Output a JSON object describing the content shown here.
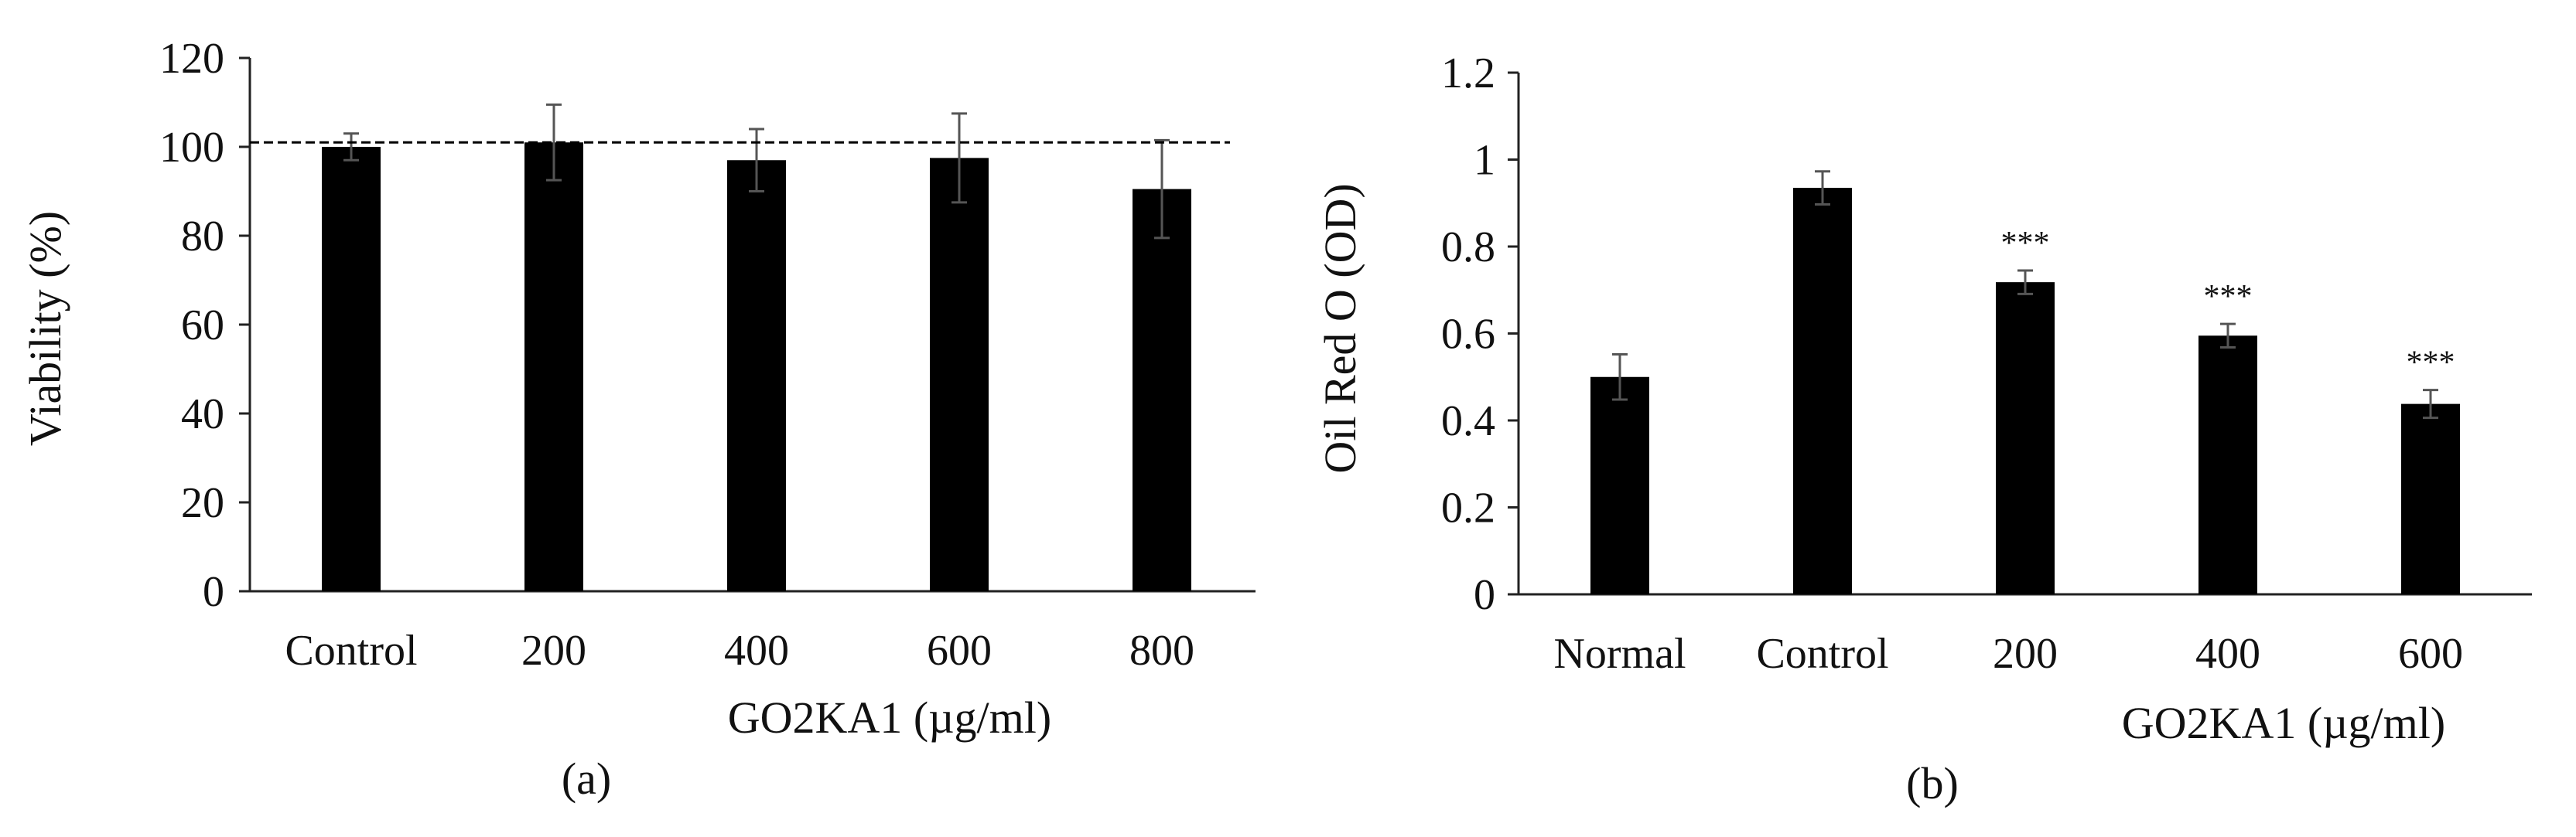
{
  "chart_data": [
    {
      "type": "bar",
      "panel_label": "(a)",
      "categories": [
        "Control",
        "200",
        "400",
        "600",
        "800"
      ],
      "values": [
        100,
        101,
        97,
        97.5,
        90.5
      ],
      "errors": [
        3,
        8.5,
        7,
        10,
        11
      ],
      "xlabel": "GO2KA1 (µg/ml)",
      "ylabel": "Viability (%)",
      "ylim": [
        0,
        120
      ],
      "ytick_labels": [
        "0",
        "20",
        "40",
        "60",
        "80",
        "100",
        "120"
      ],
      "reference_line": 101,
      "significance": [
        "",
        "",
        "",
        "",
        ""
      ],
      "bar_color": "#000000"
    },
    {
      "type": "bar",
      "panel_label": "(b)",
      "categories": [
        "Normal",
        "Control",
        "200",
        "400",
        "600"
      ],
      "values": [
        0.5,
        0.935,
        0.718,
        0.595,
        0.438
      ],
      "errors": [
        0.052,
        0.038,
        0.027,
        0.027,
        0.032
      ],
      "xlabel": "GO2KA1 (µg/ml)",
      "ylabel": "Oil Red O (OD)",
      "ylim": [
        0,
        1.2
      ],
      "ytick_labels": [
        "0",
        "0.2",
        "0.4",
        "0.6",
        "0.8",
        "1",
        "1.2"
      ],
      "significance": [
        "",
        "",
        "***",
        "***",
        "***"
      ],
      "bar_color": "#000000"
    }
  ]
}
